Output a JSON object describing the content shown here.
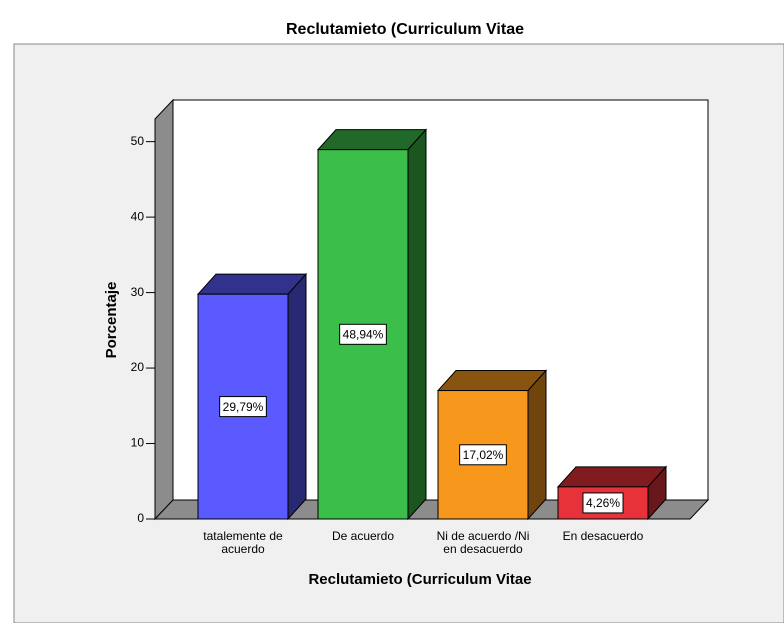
{
  "chart_data": {
    "type": "bar3d",
    "title": "Reclutamieto (Curriculum Vitae",
    "x_label": "Reclutamieto (Curriculum Vitae",
    "y_label": "Porcentaje",
    "categories": [
      "tatalemente de\nacuerdo",
      "De acuerdo",
      "Ni de acuerdo /Ni\nen desacuerdo",
      "En desacuerdo"
    ],
    "values": [
      29.79,
      48.94,
      17.02,
      4.26
    ],
    "value_labels": [
      "29,79%",
      "48,94%",
      "17,02%",
      "4,26%"
    ],
    "colors": [
      "#5a5aff",
      "#3cbe4a",
      "#f7981d",
      "#e8323a"
    ],
    "ylim": [
      0,
      53
    ],
    "yticks": [
      0,
      10,
      20,
      30,
      40,
      50
    ]
  }
}
